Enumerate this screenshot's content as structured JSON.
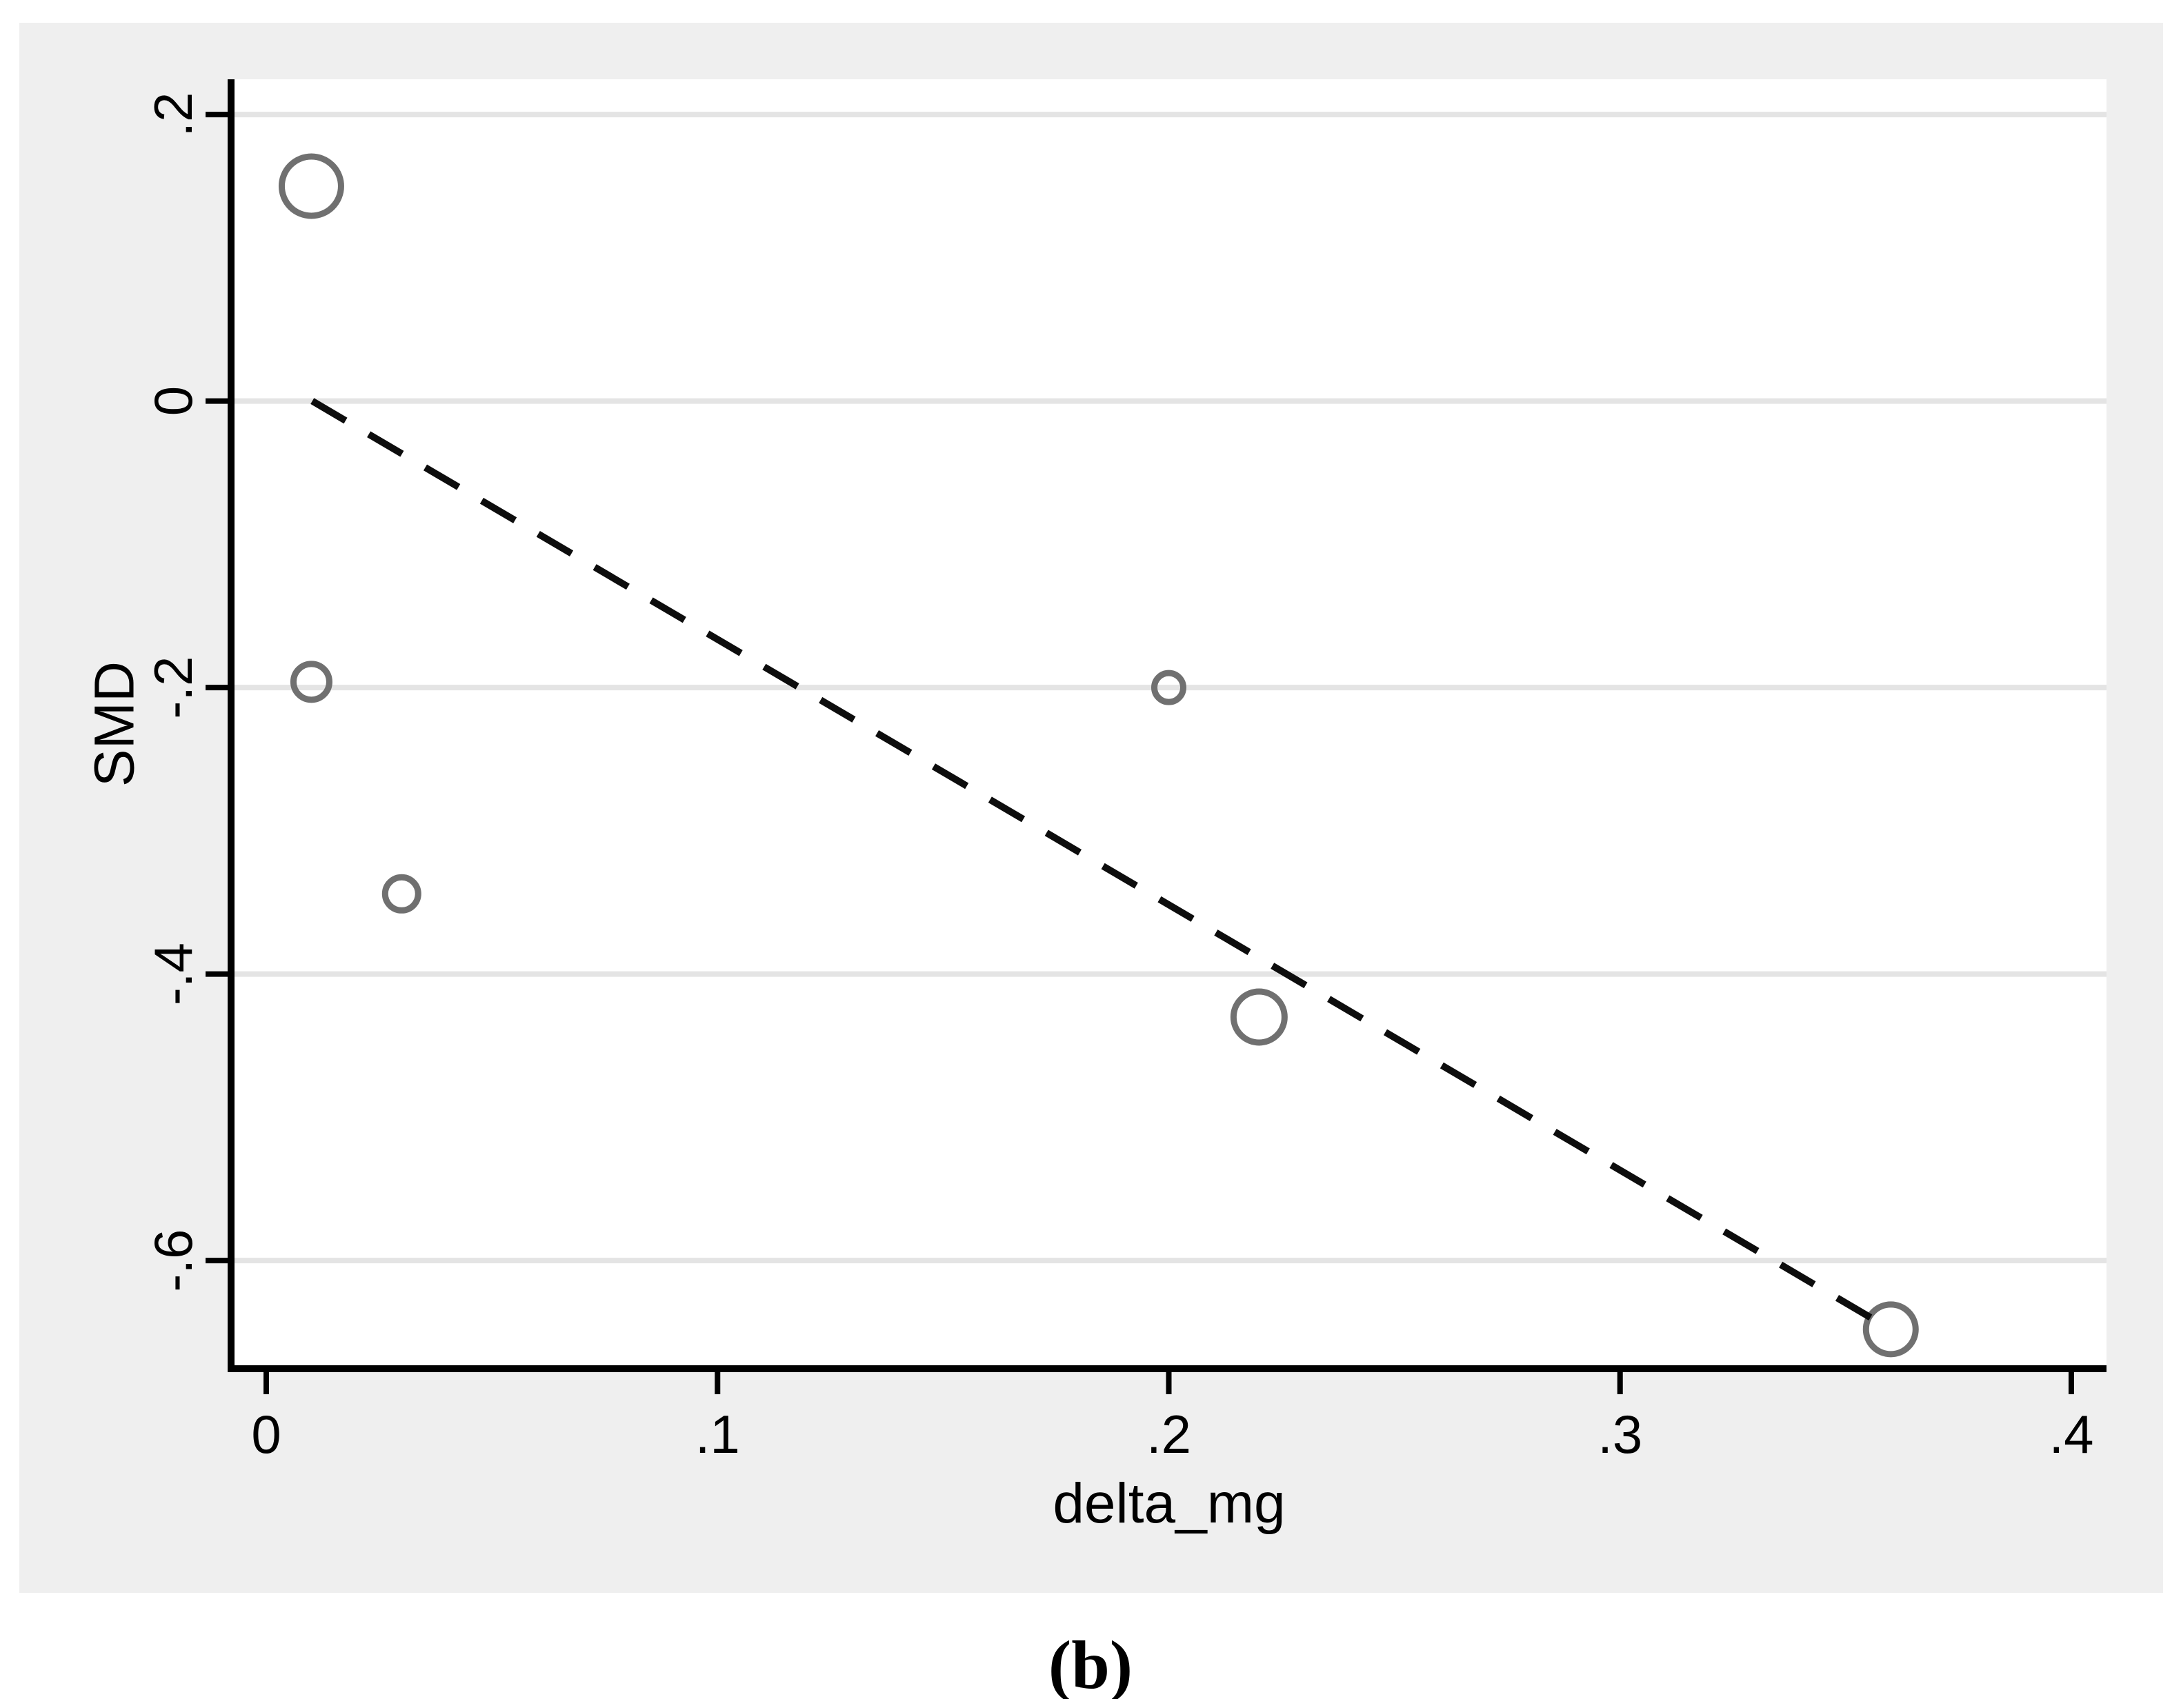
{
  "caption": "(b)",
  "colors": {
    "page_background": "#ffffff",
    "panel_background": "#efefef",
    "plot_background": "#ffffff",
    "gridline": "#e4e4e4",
    "axis": "#000000",
    "marker_stroke": "#707070",
    "trend_line": "#0d0d0d"
  },
  "chart_data": {
    "type": "scatter",
    "title": "",
    "xlabel": "delta_mg",
    "ylabel": "SMD",
    "xlim": [
      -0.0078,
      0.4078
    ],
    "ylim": [
      -0.6755,
      0.2246
    ],
    "grid": "horizontal-only",
    "legend": "none",
    "xticks": [
      {
        "value": 0,
        "label": "0"
      },
      {
        "value": 0.1,
        "label": ".1"
      },
      {
        "value": 0.2,
        "label": ".2"
      },
      {
        "value": 0.3,
        "label": ".3"
      },
      {
        "value": 0.4,
        "label": ".4"
      }
    ],
    "yticks": [
      {
        "value": 0.2,
        "label": ".2"
      },
      {
        "value": 0,
        "label": "0"
      },
      {
        "value": -0.2,
        "label": "-.2"
      },
      {
        "value": -0.4,
        "label": "-.4"
      },
      {
        "value": -0.6,
        "label": "-.6"
      }
    ],
    "points": [
      {
        "x": 0.01,
        "y": 0.15,
        "r": 43
      },
      {
        "x": 0.01,
        "y": -0.196,
        "r": 26
      },
      {
        "x": 0.03,
        "y": -0.344,
        "r": 24
      },
      {
        "x": 0.2,
        "y": -0.2,
        "r": 21
      },
      {
        "x": 0.22,
        "y": -0.43,
        "r": 37
      },
      {
        "x": 0.36,
        "y": -0.648,
        "r": 36
      }
    ],
    "trend_line": {
      "style": "dashed",
      "x1": 0.0102,
      "y1": 0.0,
      "x2": 0.3605,
      "y2": -0.649
    }
  }
}
